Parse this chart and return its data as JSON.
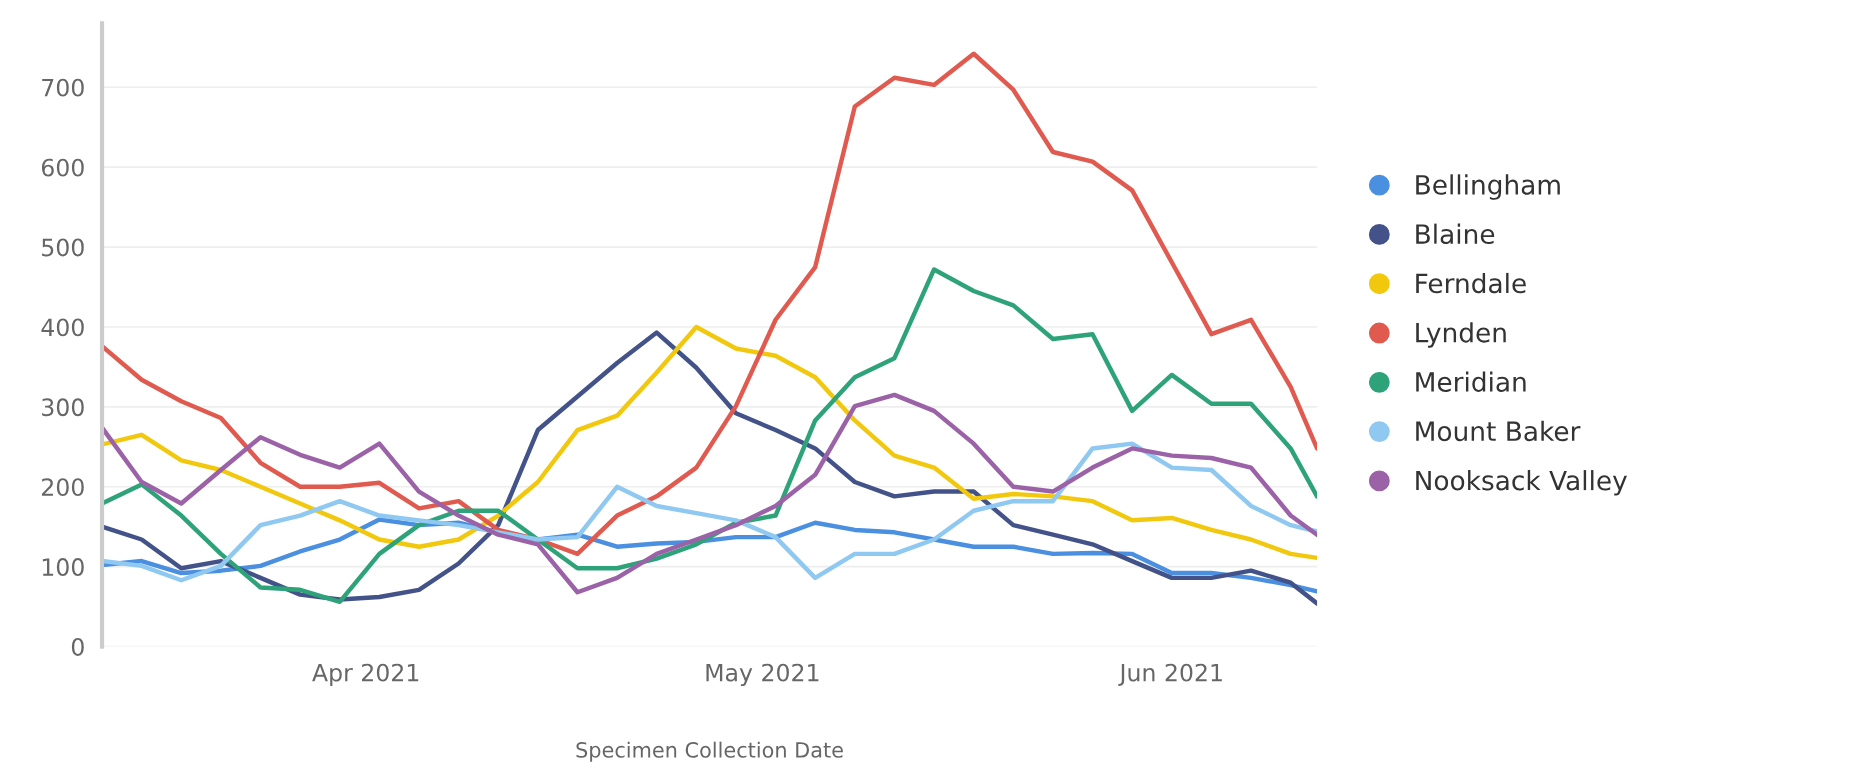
{
  "chart_data": {
    "type": "line",
    "xlabel": "Specimen Collection Date",
    "x": [
      "2021-03-12",
      "2021-03-15",
      "2021-03-18",
      "2021-03-21",
      "2021-03-24",
      "2021-03-27",
      "2021-03-30",
      "2021-04-02",
      "2021-04-05",
      "2021-04-08",
      "2021-04-11",
      "2021-04-14",
      "2021-04-17",
      "2021-04-20",
      "2021-04-23",
      "2021-04-26",
      "2021-04-29",
      "2021-05-02",
      "2021-05-05",
      "2021-05-08",
      "2021-05-11",
      "2021-05-14",
      "2021-05-17",
      "2021-05-20",
      "2021-05-23",
      "2021-05-26",
      "2021-05-29",
      "2021-06-01",
      "2021-06-04",
      "2021-06-07",
      "2021-06-10",
      "2021-06-12"
    ],
    "series": [
      {
        "name": "Bellingham",
        "color": "#4a8fe0",
        "values": [
          102,
          107,
          92,
          95,
          101,
          119,
          134,
          159,
          152,
          155,
          143,
          134,
          140,
          125,
          129,
          131,
          137,
          137,
          155,
          146,
          143,
          134,
          125,
          125,
          116,
          117,
          116,
          92,
          92,
          86,
          77,
          69
        ]
      },
      {
        "name": "Blaine",
        "color": "#435389",
        "values": [
          150,
          134,
          98,
          107,
          86,
          65,
          59,
          62,
          71,
          104,
          152,
          271,
          313,
          355,
          393,
          349,
          292,
          271,
          248,
          206,
          188,
          194,
          194,
          152,
          140,
          128,
          107,
          86,
          86,
          95,
          80,
          54
        ]
      },
      {
        "name": "Ferndale",
        "color": "#f2c80f",
        "values": [
          253,
          265,
          233,
          221,
          200,
          179,
          158,
          134,
          125,
          134,
          164,
          206,
          271,
          289,
          343,
          400,
          373,
          364,
          337,
          283,
          239,
          224,
          185,
          191,
          188,
          182,
          158,
          161,
          146,
          134,
          116,
          111
        ]
      },
      {
        "name": "Lynden",
        "color": "#e05a4f",
        "values": [
          376,
          334,
          307,
          286,
          230,
          200,
          200,
          205,
          173,
          182,
          146,
          134,
          116,
          164,
          188,
          224,
          301,
          409,
          475,
          676,
          712,
          703,
          742,
          697,
          619,
          607,
          571,
          481,
          391,
          409,
          325,
          248
        ]
      },
      {
        "name": "Meridian",
        "color": "#2ea37a",
        "values": [
          179,
          203,
          164,
          116,
          74,
          71,
          56,
          116,
          152,
          170,
          170,
          134,
          98,
          98,
          110,
          128,
          155,
          164,
          283,
          337,
          361,
          472,
          445,
          427,
          385,
          391,
          295,
          340,
          304,
          304,
          248,
          188
        ]
      },
      {
        "name": "Mount Baker",
        "color": "#8fc8f0",
        "values": [
          107,
          101,
          83,
          101,
          152,
          164,
          182,
          164,
          158,
          152,
          143,
          134,
          137,
          200,
          176,
          167,
          158,
          137,
          86,
          116,
          116,
          134,
          170,
          182,
          182,
          248,
          254,
          224,
          221,
          176,
          152,
          144
        ]
      },
      {
        "name": "Nooksack Valley",
        "color": "#9b62a7",
        "values": [
          274,
          206,
          179,
          221,
          262,
          240,
          224,
          254,
          194,
          164,
          140,
          128,
          68,
          86,
          116,
          134,
          152,
          176,
          215,
          301,
          315,
          295,
          254,
          200,
          194,
          224,
          248,
          239,
          236,
          224,
          164,
          140
        ]
      }
    ],
    "xlim": [
      "2021-03-12",
      "2021-06-12"
    ],
    "xticks": [
      {
        "value": "2021-04-01",
        "label": "Apr 2021"
      },
      {
        "value": "2021-05-01",
        "label": "May 2021"
      },
      {
        "value": "2021-06-01",
        "label": "Jun 2021"
      }
    ],
    "ylim": [
      0,
      780
    ],
    "yticks": [
      0,
      100,
      200,
      300,
      400,
      500,
      600,
      700
    ],
    "grid": "y",
    "legend": "right",
    "marker": "none",
    "line_style": "solid"
  }
}
